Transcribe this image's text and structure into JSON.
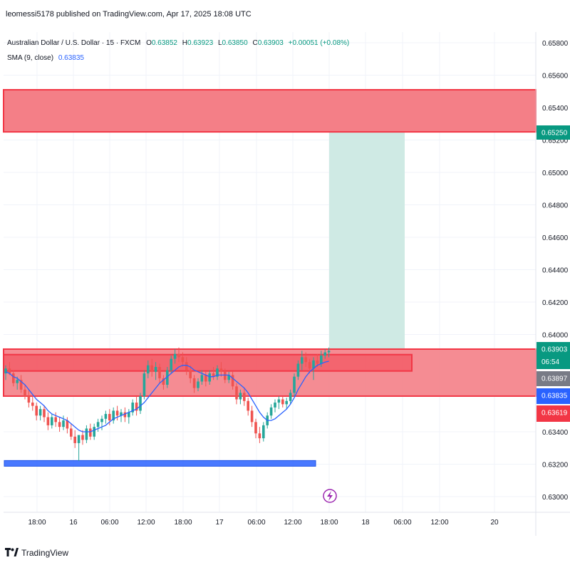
{
  "header": {
    "published": "leomessi5178 published on TradingView.com, Apr 17, 2025 18:08 UTC",
    "symbol": "Australian Dollar / U.S. Dollar · 15 · FXCM",
    "ohlc": {
      "o_label": "O",
      "o": "0.63852",
      "h_label": "H",
      "h": "0.63923",
      "l_label": "L",
      "l": "0.63850",
      "c_label": "C",
      "c": "0.63903",
      "change": "+0.00051 (+0.08%)"
    },
    "sma_label": "SMA (9, close)",
    "sma_value": "0.63835"
  },
  "footer": {
    "brand": "TradingView"
  },
  "colors": {
    "up": "#26a69a",
    "down": "#ef5350",
    "zone_fill": "#f47f87",
    "zone_border": "#f23645",
    "target_fill": "#cfeae4",
    "sma": "#2962ff",
    "support_line": "#2962ff",
    "grid": "#f0f3fa",
    "axis_text": "#131722",
    "lightning": "#9c27b0"
  },
  "chart_data": {
    "type": "candlestick",
    "y_axis_ticks": [
      "0.65800",
      "0.65600",
      "0.65400",
      "0.65200",
      "0.65000",
      "0.64800",
      "0.64600",
      "0.64400",
      "0.64200",
      "0.64000",
      "0.63400",
      "0.63200",
      "0.63000"
    ],
    "ylim": [
      0.6292,
      0.6588
    ],
    "x_axis_ticks": [
      "18:00",
      "16",
      "06:00",
      "12:00",
      "18:00",
      "17",
      "06:00",
      "12:00",
      "18:00",
      "18",
      "06:00",
      "12:00",
      "20"
    ],
    "price_labels": [
      {
        "value": "0.65250",
        "color": "#089981"
      },
      {
        "value": "0.63903",
        "sub": "06:54",
        "color": "#089981"
      },
      {
        "value": "0.63897",
        "color": "#787b86"
      },
      {
        "value": "0.63835",
        "color": "#2962ff"
      },
      {
        "value": "0.63619",
        "color": "#f23645"
      }
    ],
    "zones": [
      {
        "name": "supply-zone",
        "top": 0.6551,
        "bottom": 0.6525
      },
      {
        "name": "demand-zone",
        "top": 0.6391,
        "bottom": 0.6362
      },
      {
        "name": "inner-zone",
        "top": 0.63876,
        "bottom": 0.63775
      }
    ],
    "target_box": {
      "top": 0.6525,
      "bottom": 0.6391
    },
    "support_line": 0.63205,
    "candles": [
      [
        0.6376,
        0.6381,
        0.6372,
        0.6379
      ],
      [
        0.6379,
        0.6383,
        0.6375,
        0.6376
      ],
      [
        0.6376,
        0.6378,
        0.6368,
        0.637
      ],
      [
        0.637,
        0.6374,
        0.6366,
        0.6372
      ],
      [
        0.6372,
        0.6375,
        0.6364,
        0.6366
      ],
      [
        0.6366,
        0.6369,
        0.636,
        0.6362
      ],
      [
        0.6362,
        0.6366,
        0.6355,
        0.6358
      ],
      [
        0.6358,
        0.6362,
        0.6353,
        0.6356
      ],
      [
        0.6356,
        0.6358,
        0.6347,
        0.635
      ],
      [
        0.635,
        0.6356,
        0.6347,
        0.6354
      ],
      [
        0.6354,
        0.6356,
        0.6346,
        0.6349
      ],
      [
        0.6349,
        0.6352,
        0.6341,
        0.6344
      ],
      [
        0.6344,
        0.6351,
        0.6342,
        0.6349
      ],
      [
        0.6349,
        0.6352,
        0.6343,
        0.6346
      ],
      [
        0.6346,
        0.6349,
        0.634,
        0.6343
      ],
      [
        0.6343,
        0.635,
        0.6341,
        0.6347
      ],
      [
        0.6347,
        0.6349,
        0.6339,
        0.6342
      ],
      [
        0.6342,
        0.6345,
        0.6335,
        0.6337
      ],
      [
        0.6337,
        0.6341,
        0.633,
        0.6333
      ],
      [
        0.6333,
        0.6336,
        0.6322,
        0.6338
      ],
      [
        0.6338,
        0.6341,
        0.6332,
        0.6335
      ],
      [
        0.6335,
        0.6344,
        0.6333,
        0.6342
      ],
      [
        0.6342,
        0.6345,
        0.6335,
        0.6337
      ],
      [
        0.6337,
        0.6345,
        0.6335,
        0.6343
      ],
      [
        0.6343,
        0.6348,
        0.634,
        0.6346
      ],
      [
        0.6346,
        0.635,
        0.6341,
        0.6348
      ],
      [
        0.6348,
        0.6353,
        0.6345,
        0.6351
      ],
      [
        0.6351,
        0.6354,
        0.6344,
        0.6347
      ],
      [
        0.6347,
        0.6355,
        0.6345,
        0.6353
      ],
      [
        0.6353,
        0.6356,
        0.6347,
        0.635
      ],
      [
        0.635,
        0.6354,
        0.6346,
        0.6352
      ],
      [
        0.6352,
        0.6355,
        0.6346,
        0.6349
      ],
      [
        0.6349,
        0.6354,
        0.6345,
        0.6352
      ],
      [
        0.6352,
        0.636,
        0.635,
        0.6358
      ],
      [
        0.6358,
        0.6362,
        0.635,
        0.6353
      ],
      [
        0.6353,
        0.6364,
        0.6351,
        0.6362
      ],
      [
        0.6362,
        0.6378,
        0.636,
        0.6376
      ],
      [
        0.6376,
        0.6384,
        0.6373,
        0.6381
      ],
      [
        0.6381,
        0.6385,
        0.6374,
        0.6377
      ],
      [
        0.6377,
        0.6383,
        0.6372,
        0.638
      ],
      [
        0.638,
        0.6382,
        0.637,
        0.6373
      ],
      [
        0.6373,
        0.6375,
        0.6366,
        0.6369
      ],
      [
        0.6369,
        0.638,
        0.6367,
        0.6378
      ],
      [
        0.6378,
        0.6387,
        0.6376,
        0.6385
      ],
      [
        0.6385,
        0.6391,
        0.6382,
        0.6388
      ],
      [
        0.6388,
        0.6392,
        0.6383,
        0.6386
      ],
      [
        0.6386,
        0.6389,
        0.638,
        0.6383
      ],
      [
        0.6383,
        0.6386,
        0.6375,
        0.6378
      ],
      [
        0.6378,
        0.6381,
        0.637,
        0.6373
      ],
      [
        0.6373,
        0.6375,
        0.6364,
        0.6367
      ],
      [
        0.6367,
        0.6373,
        0.6365,
        0.6371
      ],
      [
        0.6371,
        0.6378,
        0.6369,
        0.6375
      ],
      [
        0.6375,
        0.6377,
        0.6368,
        0.6371
      ],
      [
        0.6371,
        0.6378,
        0.6369,
        0.6376
      ],
      [
        0.6376,
        0.638,
        0.6372,
        0.6374
      ],
      [
        0.6374,
        0.6381,
        0.6372,
        0.6379
      ],
      [
        0.6379,
        0.6383,
        0.6374,
        0.6377
      ],
      [
        0.6377,
        0.6379,
        0.637,
        0.6372
      ],
      [
        0.6372,
        0.6377,
        0.637,
        0.6375
      ],
      [
        0.6375,
        0.6377,
        0.6366,
        0.6368
      ],
      [
        0.6368,
        0.637,
        0.6357,
        0.636
      ],
      [
        0.636,
        0.6366,
        0.6357,
        0.6364
      ],
      [
        0.6364,
        0.6367,
        0.6356,
        0.6359
      ],
      [
        0.6359,
        0.6361,
        0.635,
        0.6353
      ],
      [
        0.6353,
        0.6356,
        0.6343,
        0.6346
      ],
      [
        0.6346,
        0.6348,
        0.6336,
        0.6339
      ],
      [
        0.6339,
        0.6343,
        0.6333,
        0.6336
      ],
      [
        0.6336,
        0.6346,
        0.6334,
        0.6344
      ],
      [
        0.6344,
        0.6352,
        0.6342,
        0.635
      ],
      [
        0.635,
        0.6357,
        0.6348,
        0.6355
      ],
      [
        0.6355,
        0.636,
        0.6352,
        0.6358
      ],
      [
        0.6358,
        0.6362,
        0.6354,
        0.636
      ],
      [
        0.636,
        0.6362,
        0.6355,
        0.6357
      ],
      [
        0.6357,
        0.6361,
        0.6354,
        0.6359
      ],
      [
        0.6359,
        0.6366,
        0.6357,
        0.6364
      ],
      [
        0.6364,
        0.6376,
        0.6362,
        0.6374
      ],
      [
        0.6374,
        0.6384,
        0.6372,
        0.6382
      ],
      [
        0.6382,
        0.639,
        0.6378,
        0.6386
      ],
      [
        0.6386,
        0.6389,
        0.638,
        0.6383
      ],
      [
        0.6383,
        0.6385,
        0.6376,
        0.6379
      ],
      [
        0.6379,
        0.6386,
        0.6372,
        0.6384
      ],
      [
        0.6384,
        0.6388,
        0.638,
        0.6382
      ],
      [
        0.6382,
        0.639,
        0.638,
        0.6387
      ],
      [
        0.6387,
        0.6391,
        0.6385,
        0.6389
      ],
      [
        0.6389,
        0.6392,
        0.6386,
        0.639
      ]
    ],
    "sma": [
      0.6377,
      0.6376,
      0.6374,
      0.6373,
      0.6371,
      0.6369,
      0.6366,
      0.6363,
      0.636,
      0.6358,
      0.6356,
      0.6353,
      0.6351,
      0.635,
      0.6349,
      0.6348,
      0.6347,
      0.6345,
      0.6343,
      0.6341,
      0.634,
      0.634,
      0.634,
      0.6341,
      0.6342,
      0.6343,
      0.6344,
      0.6346,
      0.6348,
      0.6349,
      0.635,
      0.6351,
      0.6352,
      0.6353,
      0.6354,
      0.6356,
      0.6358,
      0.6361,
      0.6364,
      0.6367,
      0.637,
      0.6372,
      0.6374,
      0.6376,
      0.6378,
      0.638,
      0.6381,
      0.6381,
      0.638,
      0.6378,
      0.6377,
      0.6376,
      0.6375,
      0.6374,
      0.6374,
      0.6375,
      0.6375,
      0.6375,
      0.6375,
      0.6373,
      0.6371,
      0.6369,
      0.6367,
      0.6364,
      0.636,
      0.6356,
      0.6352,
      0.6349,
      0.6347,
      0.6347,
      0.6348,
      0.635,
      0.6352,
      0.6354,
      0.6357,
      0.6361,
      0.6366,
      0.637,
      0.6374,
      0.6377,
      0.6379,
      0.6381,
      0.6382,
      0.6383,
      0.63835
    ]
  }
}
